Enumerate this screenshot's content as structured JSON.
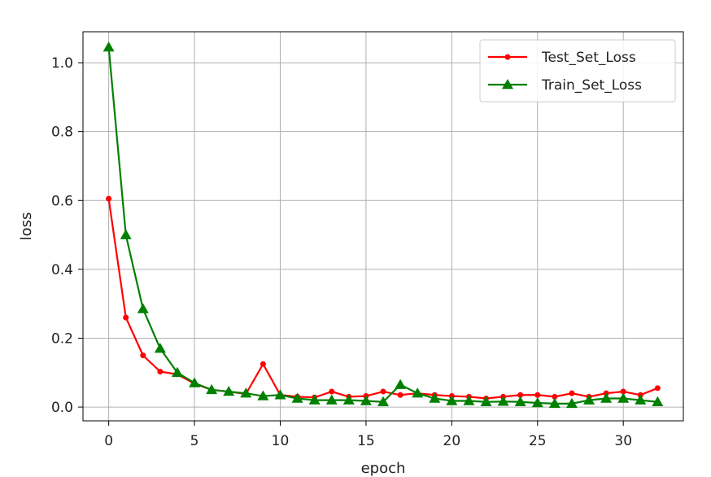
{
  "chart_data": {
    "type": "line",
    "title": "",
    "xlabel": "epoch",
    "ylabel": "loss",
    "xlim": [
      -1.5,
      33.5
    ],
    "ylim": [
      -0.04,
      1.09
    ],
    "xticks": [
      0,
      5,
      10,
      15,
      20,
      25,
      30
    ],
    "yticks": [
      0.0,
      0.2,
      0.4,
      0.6,
      0.8,
      1.0
    ],
    "xtick_labels": [
      "0",
      "5",
      "10",
      "15",
      "20",
      "25",
      "30"
    ],
    "ytick_labels": [
      "0.0",
      "0.2",
      "0.4",
      "0.6",
      "0.8",
      "1.0"
    ],
    "grid": true,
    "legend_position": "top-right",
    "x": [
      0,
      1,
      2,
      3,
      4,
      5,
      6,
      7,
      8,
      9,
      10,
      11,
      12,
      13,
      14,
      15,
      16,
      17,
      18,
      19,
      20,
      21,
      22,
      23,
      24,
      25,
      26,
      27,
      28,
      29,
      30,
      31,
      32
    ],
    "series": [
      {
        "name": "Test_Set_Loss",
        "color": "#ff0000",
        "marker": "dot",
        "values": [
          0.605,
          0.26,
          0.15,
          0.103,
          0.095,
          0.068,
          0.05,
          0.045,
          0.038,
          0.125,
          0.035,
          0.03,
          0.028,
          0.045,
          0.03,
          0.032,
          0.045,
          0.035,
          0.04,
          0.035,
          0.032,
          0.03,
          0.025,
          0.03,
          0.035,
          0.035,
          0.03,
          0.04,
          0.03,
          0.04,
          0.045,
          0.035,
          0.055
        ]
      },
      {
        "name": "Train_Set_Loss",
        "color": "#008000",
        "marker": "triangle",
        "values": [
          1.045,
          0.5,
          0.285,
          0.17,
          0.1,
          0.07,
          0.05,
          0.045,
          0.04,
          0.032,
          0.035,
          0.025,
          0.02,
          0.02,
          0.02,
          0.018,
          0.015,
          0.065,
          0.04,
          0.025,
          0.018,
          0.018,
          0.015,
          0.016,
          0.015,
          0.012,
          0.01,
          0.01,
          0.02,
          0.025,
          0.025,
          0.02,
          0.015
        ]
      }
    ]
  }
}
